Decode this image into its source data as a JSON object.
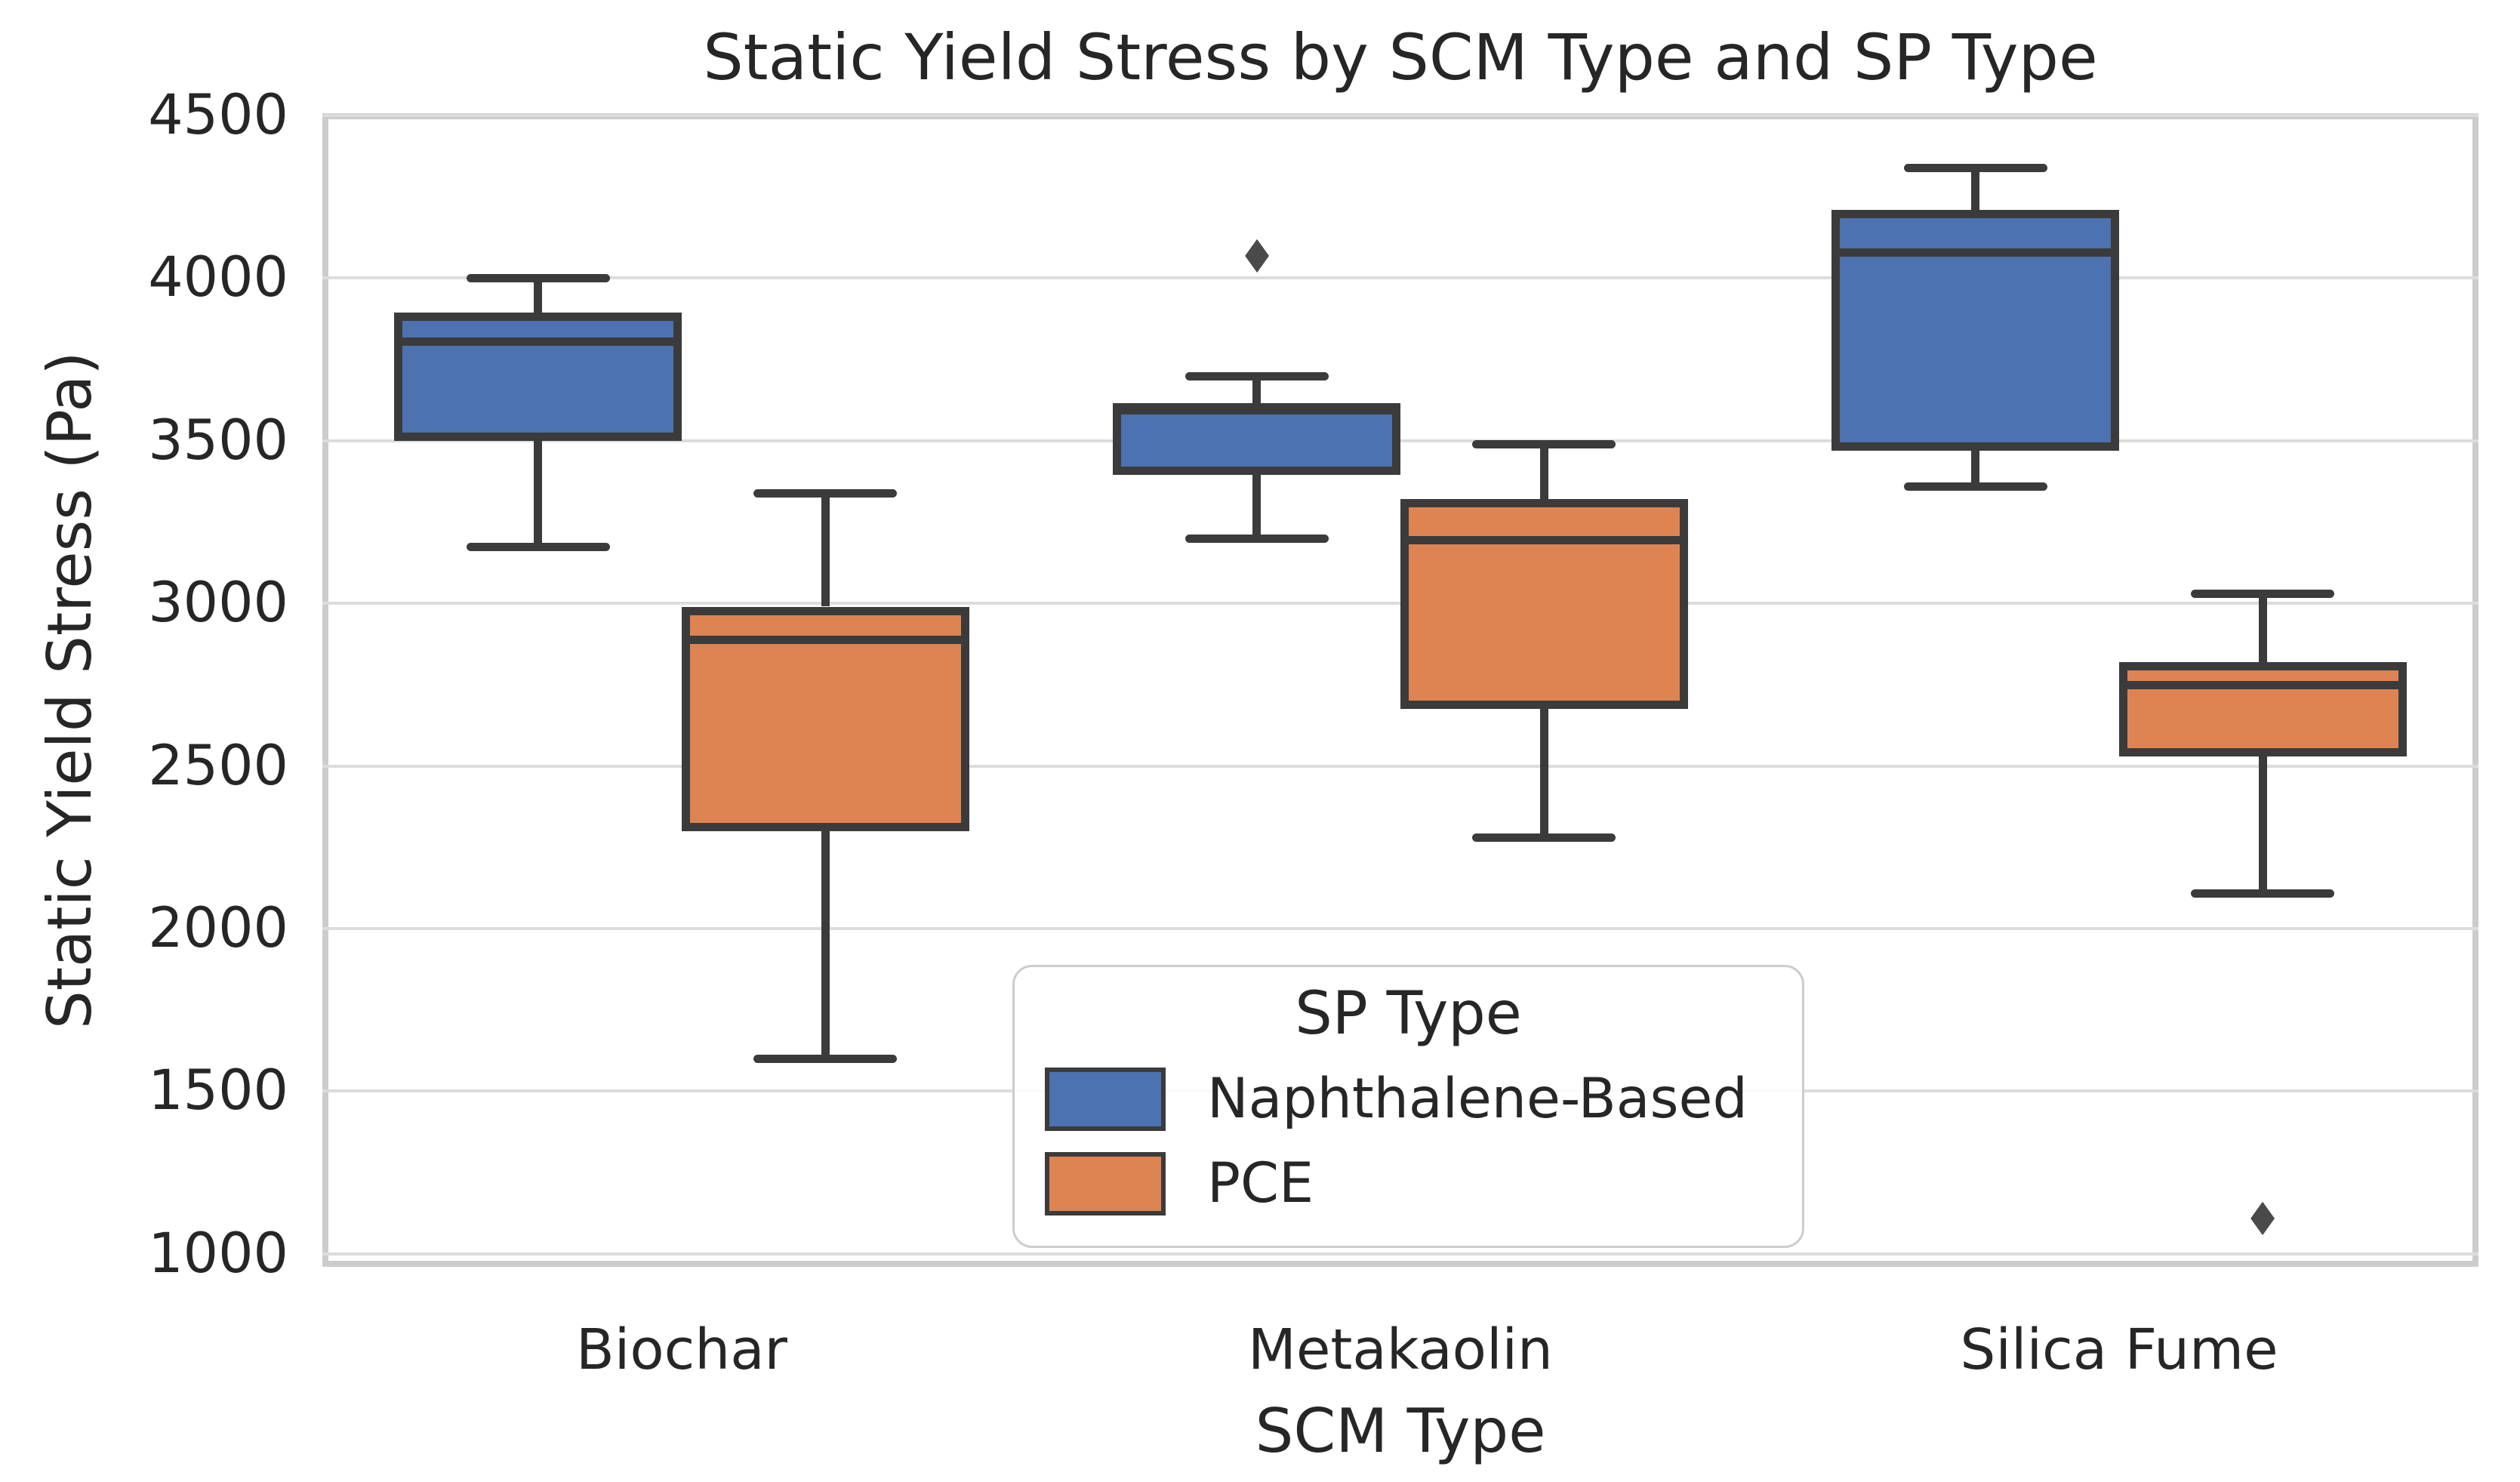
{
  "title": "Static Yield Stress by SCM Type and SP Type",
  "axes": {
    "xlabel": "SCM Type",
    "ylabel": "Static Yield Stress (Pa)"
  },
  "legend": {
    "title": "SP Type",
    "entries": [
      {
        "label": "Naphthalene-Based",
        "color": "#4C72B0"
      },
      {
        "label": "PCE",
        "color": "#DD8452"
      }
    ]
  },
  "colors": {
    "box_edge": "#3b3b3b",
    "grid": "#dcdcdc",
    "spine": "#cccccc",
    "text": "#262626",
    "outlier": "#4a4a4a",
    "background": "#ffffff"
  },
  "outlier_marker": "◆",
  "chart_data": {
    "type": "boxplot",
    "title": "Static Yield Stress by SCM Type and SP Type",
    "xlabel": "SCM Type",
    "ylabel": "Static Yield Stress (Pa)",
    "categories": [
      "Biochar",
      "Metakaolin",
      "Silica Fume"
    ],
    "yticks": [
      1000,
      1500,
      2000,
      2500,
      3000,
      3500,
      4000,
      4500
    ],
    "ylim": [
      960,
      4507
    ],
    "grid": "horizontal",
    "legend_position": "inside lower-center",
    "series": [
      {
        "name": "Naphthalene-Based",
        "color": "#4C72B0",
        "boxes": [
          {
            "category": "Biochar",
            "whislo": 3175,
            "q1": 3500,
            "med": 3805,
            "q3": 3895,
            "whishi": 4000,
            "outliers": []
          },
          {
            "category": "Metakaolin",
            "whislo": 3200,
            "q1": 3395,
            "med": 3595,
            "q3": 3615,
            "whishi": 3700,
            "outliers": [
              4080
            ]
          },
          {
            "category": "Silica Fume",
            "whislo": 3360,
            "q1": 3470,
            "med": 4080,
            "q3": 4210,
            "whishi": 4340,
            "outliers": []
          }
        ]
      },
      {
        "name": "PCE",
        "color": "#DD8452",
        "boxes": [
          {
            "category": "Biochar",
            "whislo": 1600,
            "q1": 2300,
            "med": 2890,
            "q3": 2990,
            "whishi": 3340,
            "outliers": []
          },
          {
            "category": "Metakaolin",
            "whislo": 2280,
            "q1": 2675,
            "med": 3195,
            "q3": 3320,
            "whishi": 3490,
            "outliers": []
          },
          {
            "category": "Silica Fume",
            "whislo": 2110,
            "q1": 2530,
            "med": 2750,
            "q3": 2820,
            "whishi": 3030,
            "outliers": [
              1120
            ]
          }
        ]
      }
    ]
  }
}
